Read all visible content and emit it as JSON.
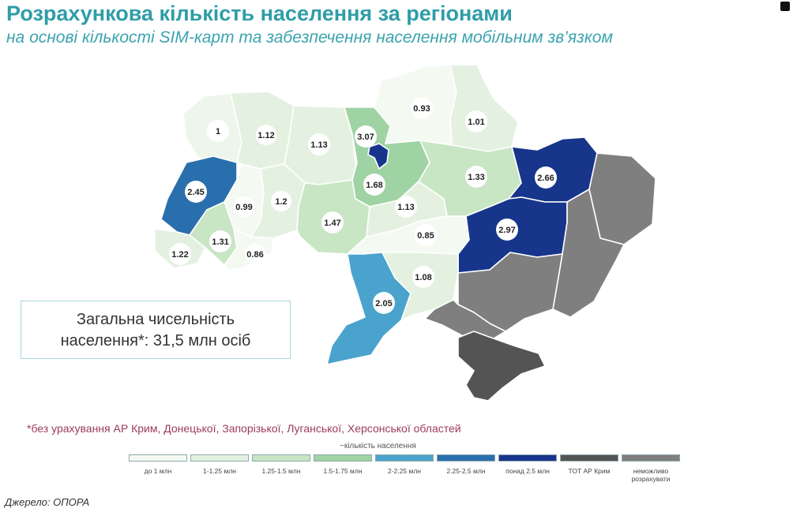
{
  "title": "Розрахункова кількість населення за регіонами",
  "subtitle": "на основі кількості SIM-карт та забезпечення населення мобільним зв’язком",
  "total_box": {
    "line1": "Загальна чисельність",
    "line2": "населення*: 31,5 млн осіб"
  },
  "footnote": "*без урахування АР Крим, Донецької, Запорізької, Луганської, Херсонської областей",
  "legend": {
    "title": "~кількість населення",
    "items": [
      {
        "label": "до 1 млн",
        "color": "#f4f9f2"
      },
      {
        "label": "1-1.25 млн",
        "color": "#e4f1e1"
      },
      {
        "label": "1.25-1.5 млн",
        "color": "#c8e5c4"
      },
      {
        "label": "1.5-1.75 млн",
        "color": "#9fd3a4"
      },
      {
        "label": "2-2.25 млн",
        "color": "#4aa3cc"
      },
      {
        "label": "2.25-2.5 млн",
        "color": "#2a6fad"
      },
      {
        "label": "понад 2.5 млн",
        "color": "#17358b"
      },
      {
        "label": "ТОТ АР Крим",
        "color": "#545454"
      },
      {
        "label": "неможливо розрахувати",
        "color": "#7f7f7f"
      }
    ]
  },
  "regions": [
    {
      "name": "Волинська",
      "value": "1",
      "color": "#eef6ec"
    },
    {
      "name": "Рівненська",
      "value": "1.12",
      "color": "#e4f1e1"
    },
    {
      "name": "Житомирська",
      "value": "1.13",
      "color": "#e4f1e1"
    },
    {
      "name": "Київська",
      "value": "1.68",
      "color": "#9fd3a4"
    },
    {
      "name": "м. Київ",
      "value": "3.07",
      "color": "#17358b"
    },
    {
      "name": "Чернігівська",
      "value": "0.93",
      "color": "#f4f9f2"
    },
    {
      "name": "Сумська",
      "value": "1.01",
      "color": "#e4f1e1"
    },
    {
      "name": "Львівська",
      "value": "2.45",
      "color": "#2a6fad"
    },
    {
      "name": "Тернопільська",
      "value": "0.99",
      "color": "#f4f9f2"
    },
    {
      "name": "Хмельницька",
      "value": "1.2",
      "color": "#e4f1e1"
    },
    {
      "name": "Вінницька",
      "value": "1.47",
      "color": "#c8e5c4"
    },
    {
      "name": "Черкаська",
      "value": "1.13",
      "color": "#e4f1e1"
    },
    {
      "name": "Полтавська",
      "value": "1.33",
      "color": "#c8e5c4"
    },
    {
      "name": "Харківська",
      "value": "2.66",
      "color": "#17358b"
    },
    {
      "name": "Закарпатська",
      "value": "1.22",
      "color": "#e4f1e1"
    },
    {
      "name": "Івано-Франківська",
      "value": "1.31",
      "color": "#c8e5c4"
    },
    {
      "name": "Чернівецька",
      "value": "0.86",
      "color": "#f4f9f2"
    },
    {
      "name": "Кіровоградська",
      "value": "0.85",
      "color": "#f4f9f2"
    },
    {
      "name": "Дніпропетровська",
      "value": "2.97",
      "color": "#17358b"
    },
    {
      "name": "Одеська",
      "value": "2.05",
      "color": "#4aa3cc"
    },
    {
      "name": "Миколаївська",
      "value": "1.08",
      "color": "#e4f1e1"
    },
    {
      "name": "Луганська",
      "value": "",
      "color": "#7f7f7f"
    },
    {
      "name": "Донецька",
      "value": "",
      "color": "#7f7f7f"
    },
    {
      "name": "Запорізька",
      "value": "",
      "color": "#7f7f7f"
    },
    {
      "name": "Херсонська",
      "value": "",
      "color": "#7f7f7f"
    },
    {
      "name": "АР Крим",
      "value": "",
      "color": "#545454"
    }
  ],
  "source": "Джерело: ОПОРА"
}
